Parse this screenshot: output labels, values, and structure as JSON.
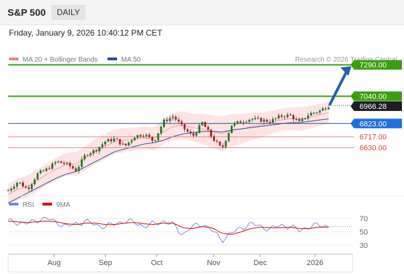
{
  "header": {
    "symbol": "S&P 500",
    "period": "DAILY"
  },
  "timestamp": "Friday, January 9, 2026 10:40:12 PM CET",
  "chart_data": [
    {
      "type": "candlestick",
      "legend": [
        {
          "label": "MA 20 + Bollinger Bands",
          "color": "#f08080"
        },
        {
          "label": "MA 50",
          "color": "#2a4f8f"
        }
      ],
      "credit": "Research © 2026 Trading Central",
      "ylim": [
        6170,
        7370
      ],
      "x_ticks": [
        "Aug",
        "Sep",
        "Oct",
        "Nov",
        "Dec",
        "2026"
      ],
      "close_path": [
        6290,
        6360,
        6300,
        6420,
        6460,
        6520,
        6500,
        6450,
        6580,
        6610,
        6680,
        6700,
        6640,
        6720,
        6740,
        6680,
        6840,
        6880,
        6790,
        6720,
        6830,
        6710,
        6620,
        6810,
        6840,
        6860,
        6850,
        6840,
        6880,
        6890,
        6830,
        6900,
        6920,
        6965
      ],
      "ma20_path": [
        6260,
        6300,
        6320,
        6370,
        6420,
        6460,
        6500,
        6500,
        6550,
        6600,
        6640,
        6680,
        6690,
        6700,
        6710,
        6700,
        6760,
        6800,
        6810,
        6790,
        6780,
        6760,
        6740,
        6770,
        6780,
        6800,
        6810,
        6830,
        6850,
        6860,
        6860,
        6870,
        6890,
        6910
      ],
      "ma50_path": [
        6190,
        6230,
        6270,
        6310,
        6350,
        6390,
        6420,
        6440,
        6480,
        6520,
        6560,
        6600,
        6620,
        6640,
        6660,
        6670,
        6690,
        6720,
        6740,
        6750,
        6760,
        6760,
        6755,
        6770,
        6780,
        6790,
        6800,
        6810,
        6820,
        6830,
        6830,
        6840,
        6850,
        6860
      ],
      "band_width": [
        80,
        85,
        90,
        90,
        85,
        90,
        90,
        95,
        95,
        100,
        100,
        100,
        95,
        90,
        90,
        90,
        100,
        110,
        110,
        110,
        120,
        130,
        140,
        130,
        120,
        110,
        100,
        90,
        90,
        90,
        95,
        90,
        90,
        85
      ],
      "levels": [
        {
          "label": "7290.00",
          "value": 7290,
          "color": "#3a9e0e",
          "kind": "resistance"
        },
        {
          "label": "7040.00",
          "value": 7040,
          "color": "#3a9e0e",
          "kind": "resistance"
        },
        {
          "label": "6966.28",
          "value": 6966.28,
          "color": "#222222",
          "kind": "last"
        },
        {
          "label": "6823.00",
          "value": 6823,
          "color": "#1e6fe0",
          "kind": "pivot"
        },
        {
          "label": "6717.00",
          "value": 6717,
          "color": "#e04040",
          "kind": "support"
        },
        {
          "label": "6630.00",
          "value": 6630,
          "color": "#e04040",
          "kind": "support"
        }
      ],
      "arrow": {
        "from": 6966.28,
        "to": 7290,
        "color": "#2a5fa8"
      }
    },
    {
      "type": "line",
      "legend": [
        {
          "label": "RSI",
          "color": "#6f8ee0"
        },
        {
          "label": "9MA",
          "color": "#e00000"
        }
      ],
      "ylim": [
        20,
        80
      ],
      "y_ticks": [
        30,
        50,
        70
      ],
      "rsi_path": [
        66,
        64,
        62,
        68,
        70,
        64,
        58,
        62,
        66,
        60,
        58,
        62,
        66,
        64,
        58,
        62,
        66,
        60,
        46,
        58,
        62,
        52,
        38,
        48,
        56,
        62,
        58,
        54,
        60,
        58,
        52,
        58,
        60,
        58
      ],
      "ma9_path": [
        66,
        65,
        64,
        65,
        66,
        65,
        62,
        61,
        63,
        63,
        61,
        61,
        63,
        64,
        62,
        61,
        63,
        63,
        56,
        55,
        58,
        56,
        48,
        46,
        50,
        55,
        57,
        56,
        56,
        57,
        55,
        55,
        57,
        57
      ]
    }
  ]
}
